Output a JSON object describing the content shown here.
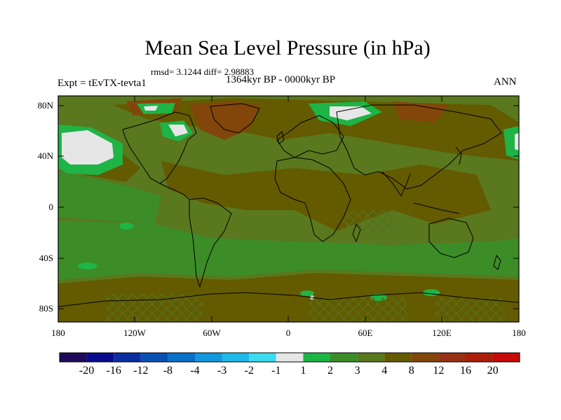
{
  "title": "Mean Sea Level Pressure (in hPa)",
  "stats": "rmsd= 3.1244  diff= 2.98883",
  "experiment": "Expt = tEvTX-tevta1",
  "period": "1364kyr BP - 0000kyr BP",
  "season": "ANN",
  "lat_ticks": [
    "80N",
    "40N",
    "0",
    "40S",
    "80S"
  ],
  "lon_ticks": [
    "180",
    "120W",
    "60W",
    "0",
    "60E",
    "120E",
    "180"
  ],
  "colorbar": {
    "labels": [
      "-20",
      "-16",
      "-12",
      "-8",
      "-4",
      "-3",
      "-2",
      "-1",
      "1",
      "2",
      "3",
      "4",
      "8",
      "12",
      "16",
      "20"
    ],
    "colors": [
      "#1e0a5a",
      "#0a0a8c",
      "#0a2da0",
      "#0a4fb4",
      "#0a6fc8",
      "#1496dc",
      "#1eb9e6",
      "#3cdcf0",
      "#e6e6e6",
      "#1eb446",
      "#3c8c28",
      "#5a781e",
      "#645a00",
      "#82460a",
      "#963214",
      "#aa1e0a",
      "#c80a0a"
    ]
  },
  "map_colors": {
    "base": "#5a781e",
    "warm": "#645a00",
    "hot": "#82460a",
    "green": "#3c8c28",
    "bright": "#1eb446",
    "white": "#e6e6e6"
  }
}
